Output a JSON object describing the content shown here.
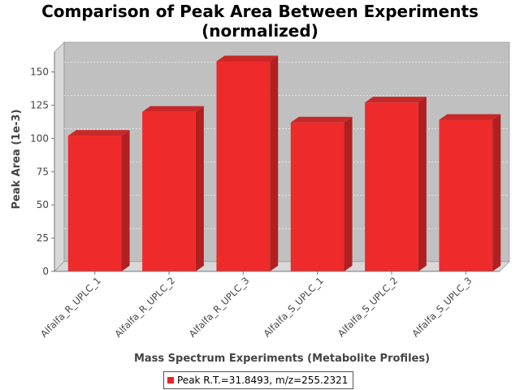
{
  "chart_data": {
    "type": "bar",
    "title": "Comparison of Peak Area Between Experiments",
    "subtitle": "(normalized)",
    "xlabel": "Mass Spectrum Experiments (Metabolite Profiles)",
    "ylabel": "Peak Area (1e-3)",
    "categories": [
      "Alfalfa_R_UPLC_1",
      "Alfalfa_R_UPLC_2",
      "Alfalfa_R_UPLC_3",
      "Alfalfa_S_UPLC_1",
      "Alfalfa_S_UPLC_2",
      "Alfalfa_S_UPLC_3"
    ],
    "series": [
      {
        "name": "Peak R.T.=31.8493, m/z=255.2321",
        "values": [
          102,
          120,
          158,
          112,
          127,
          114
        ],
        "color": "#ee2222"
      }
    ],
    "ylim": [
      0,
      165
    ],
    "yticks": [
      0,
      25,
      50,
      75,
      100,
      125,
      150
    ],
    "grid": true,
    "legend_position": "bottom",
    "colors": {
      "plot_background": "#c0c0c0",
      "bar_face": "#ee2a2a",
      "bar_side": "#b02020",
      "bar_top": "#c82828"
    }
  }
}
